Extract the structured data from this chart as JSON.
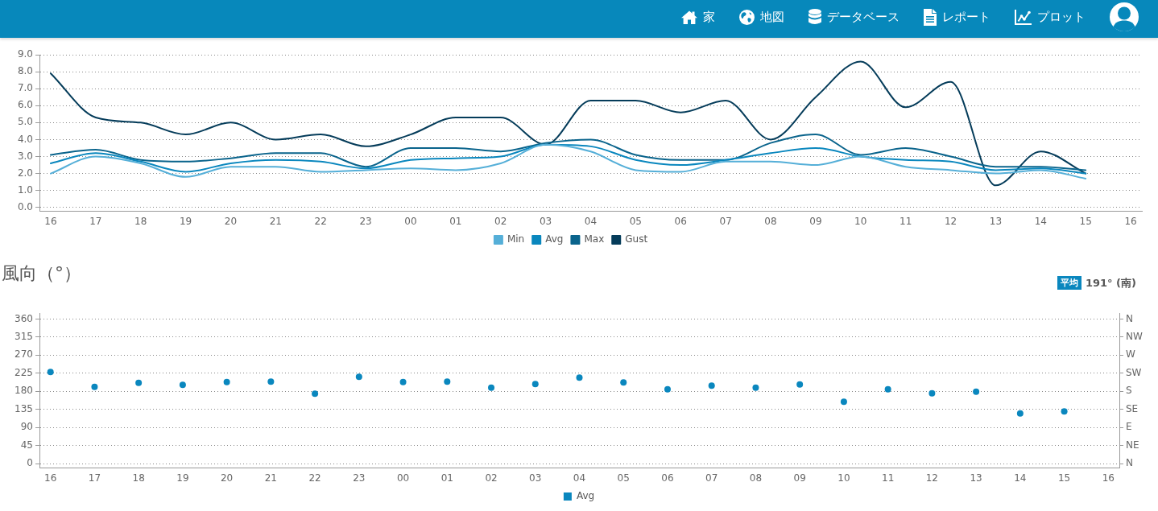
{
  "chart_data": [
    {
      "type": "other",
      "annotations": [
        "家",
        "地図",
        "データベース",
        "レポート",
        "プロット"
      ]
    },
    {
      "type": "line",
      "categories": [
        "16",
        "17",
        "18",
        "19",
        "20",
        "21",
        "22",
        "23",
        "00",
        "01",
        "02",
        "03",
        "04",
        "05",
        "06",
        "07",
        "08",
        "09",
        "10",
        "11",
        "12",
        "13",
        "14",
        "15",
        "16"
      ],
      "series": [
        {
          "name": "Min",
          "color": "#55afd8",
          "values": [
            2.0,
            3.0,
            2.6,
            1.8,
            2.4,
            2.4,
            2.1,
            2.2,
            2.3,
            2.2,
            2.6,
            3.7,
            3.3,
            2.2,
            2.1,
            2.7,
            2.7,
            2.5,
            3.0,
            2.4,
            2.2,
            2.0,
            2.2,
            1.7,
            null
          ]
        },
        {
          "name": "Avg",
          "color": "#0a87be",
          "values": [
            2.6,
            3.2,
            2.7,
            2.1,
            2.6,
            2.8,
            2.7,
            2.3,
            2.8,
            2.9,
            3.0,
            3.7,
            3.6,
            2.8,
            2.5,
            2.8,
            3.2,
            3.5,
            3.0,
            2.8,
            2.7,
            2.2,
            2.3,
            2.0,
            null
          ]
        },
        {
          "name": "Max",
          "color": "#0a648c",
          "values": [
            3.1,
            3.4,
            2.8,
            2.7,
            2.9,
            3.2,
            3.2,
            2.4,
            3.5,
            3.5,
            3.3,
            3.8,
            4.0,
            3.1,
            2.8,
            2.8,
            3.8,
            4.3,
            3.1,
            3.5,
            3.0,
            2.4,
            2.4,
            2.2,
            null
          ]
        },
        {
          "name": "Gust",
          "color": "#053c5a",
          "values": [
            7.9,
            5.3,
            5.0,
            4.3,
            5.0,
            4.0,
            4.3,
            3.6,
            4.3,
            5.3,
            5.3,
            3.7,
            6.3,
            6.3,
            5.6,
            6.3,
            4.0,
            6.5,
            8.6,
            5.9,
            7.4,
            1.3,
            3.3,
            2.0,
            null
          ]
        }
      ],
      "ylim": [
        -0.2,
        9
      ],
      "yticks": [
        {
          "value": 0,
          "label": "0.0"
        },
        {
          "value": 1,
          "label": "1.0"
        },
        {
          "value": 2,
          "label": "2.0"
        },
        {
          "value": 3,
          "label": "3.0"
        },
        {
          "value": 4,
          "label": "4.0"
        },
        {
          "value": 5,
          "label": "5.0"
        },
        {
          "value": 6,
          "label": "6.0"
        },
        {
          "value": 7,
          "label": "7.0"
        },
        {
          "value": 8,
          "label": "8.0"
        },
        {
          "value": 9,
          "label": "9.0"
        }
      ],
      "grid": "y",
      "legend": "bottom",
      "marker": "none",
      "line_style": "solid"
    },
    {
      "type": "scatter",
      "title": "風向（°）",
      "annotations": [
        "平均",
        "191° (南)"
      ],
      "categories": [
        "16",
        "17",
        "18",
        "19",
        "20",
        "21",
        "22",
        "23",
        "00",
        "01",
        "02",
        "03",
        "04",
        "05",
        "06",
        "07",
        "08",
        "09",
        "10",
        "11",
        "12",
        "13",
        "14",
        "15",
        "16"
      ],
      "series": [
        {
          "name": "Avg",
          "color": "#0a87be",
          "values": [
            228,
            191,
            201,
            196,
            203,
            204,
            174,
            216,
            203,
            204,
            189,
            198,
            214,
            202,
            185,
            194,
            189,
            197,
            154,
            185,
            175,
            179,
            125,
            130,
            null
          ]
        }
      ],
      "ylim": [
        -10,
        375
      ],
      "yticks": [
        0,
        45,
        90,
        135,
        180,
        225,
        270,
        315,
        360
      ],
      "y2_categories": [
        "N",
        "NW",
        "W",
        "SW",
        "S",
        "SE",
        "E",
        "NE",
        "N"
      ],
      "grid": "y",
      "legend": "bottom",
      "marker": "circle"
    }
  ]
}
